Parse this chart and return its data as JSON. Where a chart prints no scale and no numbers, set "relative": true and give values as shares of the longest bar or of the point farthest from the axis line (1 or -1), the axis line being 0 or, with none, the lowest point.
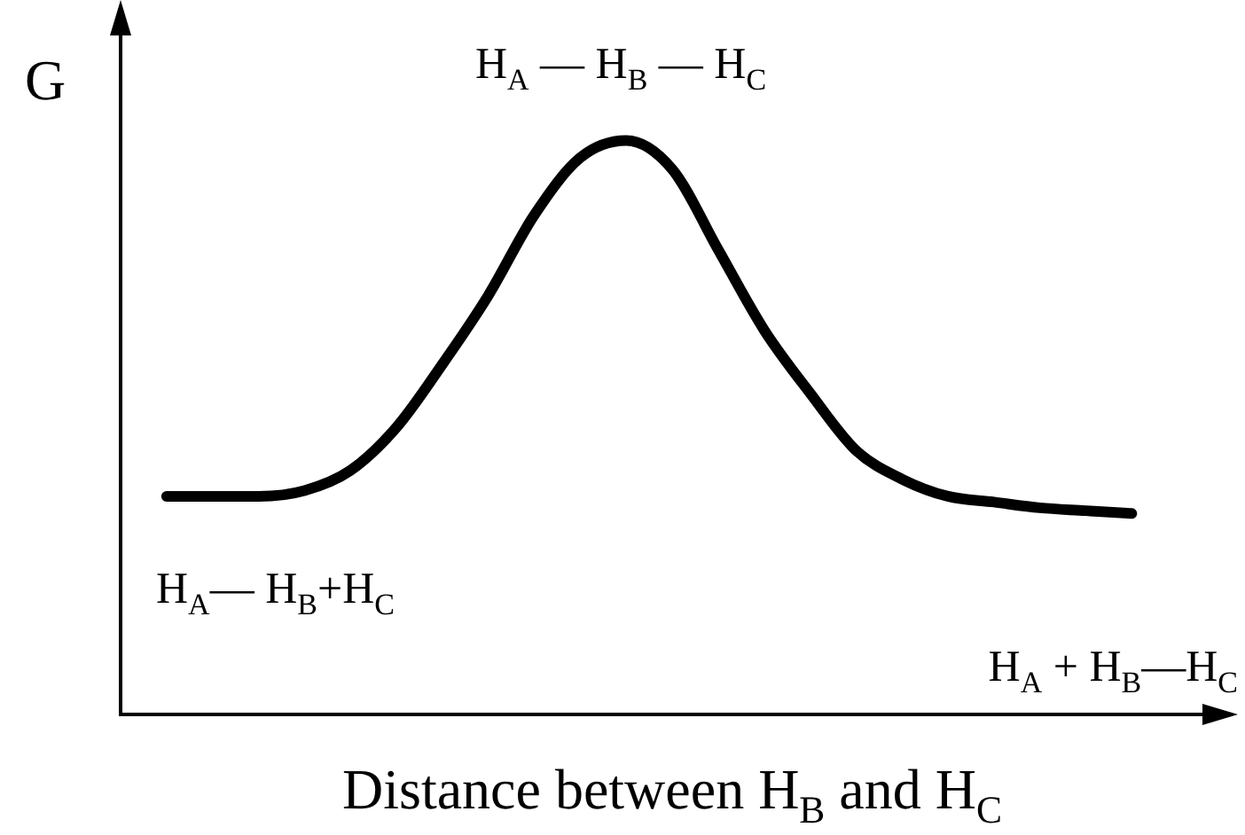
{
  "chart_data": {
    "type": "line",
    "relative": true,
    "ylabel": "G",
    "xlabel": "Distance between H$_{B}$ and H$_{C}$",
    "categories": [
      null,
      null,
      null,
      null,
      null,
      null,
      null,
      null,
      null,
      null,
      null,
      null,
      null,
      null,
      null,
      null,
      null,
      null,
      null,
      null,
      null,
      null,
      null,
      null,
      null
    ],
    "series": [
      {
        "color": "#000000",
        "values": [
          null,
          0.38,
          0.38,
          0.38,
          0.39,
          0.425,
          0.5,
          0.61,
          0.73,
          0.87,
          0.97,
          1.0,
          0.95,
          0.81,
          0.67,
          0.56,
          0.46,
          0.41,
          0.38,
          0.37,
          0.36,
          0.355,
          0.35,
          null,
          null
        ]
      }
    ],
    "annotations": [
      "H$_{A}$ — H$_{B}$ — H$_{C}$",
      "H$_{A}$— H$_{B}$+H$_{C}$",
      "H$_{A}$ + H$_{B}$—H$_{C}$"
    ],
    "legend": false,
    "grid": false,
    "marker": "none",
    "line_style": "solid"
  }
}
